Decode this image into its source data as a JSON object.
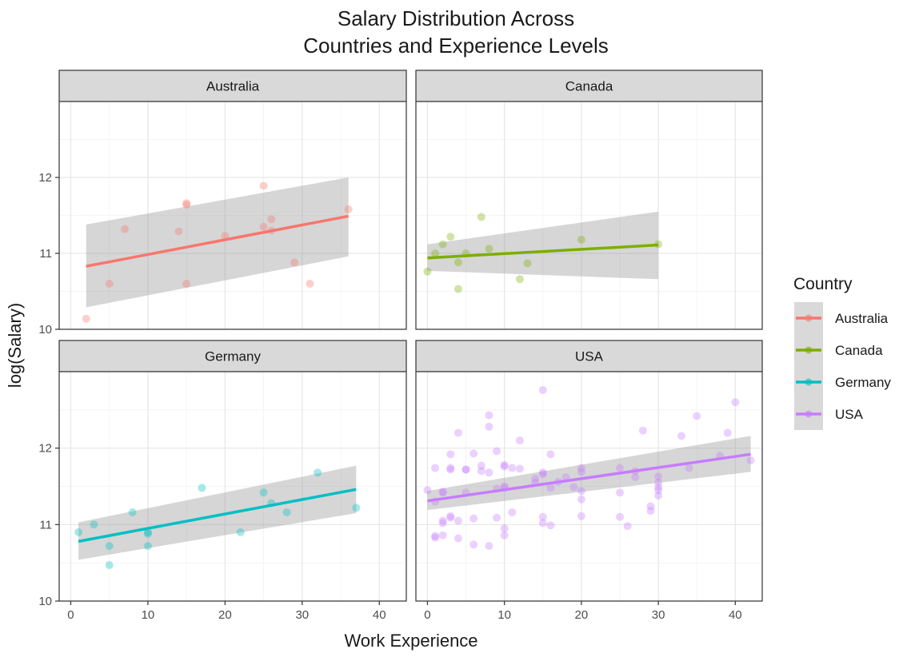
{
  "chart_data": {
    "type": "scatter",
    "title": "Salary Distribution Across\nCountries and Experience Levels",
    "xlabel": "Work Experience",
    "ylabel": "log(Salary)",
    "xlim": [
      -1.5,
      43.5
    ],
    "ylim": [
      10,
      13
    ],
    "x_ticks": [
      0,
      10,
      20,
      30,
      40
    ],
    "y_ticks": [
      10,
      11,
      12
    ],
    "grid": true,
    "legend": {
      "title": "Country",
      "placement": "right",
      "entries": [
        "Australia",
        "Canada",
        "Germany",
        "USA"
      ]
    },
    "panels": [
      {
        "name": "Australia",
        "color": "#F8766D",
        "fit": {
          "x": [
            2,
            36
          ],
          "y": [
            10.83,
            11.49
          ],
          "lower": [
            10.29,
            10.96
          ],
          "upper": [
            11.38,
            12.0
          ]
        },
        "points": [
          [
            2,
            10.14
          ],
          [
            5,
            10.6
          ],
          [
            7,
            11.32
          ],
          [
            14,
            11.29
          ],
          [
            15,
            11.66
          ],
          [
            15,
            11.64
          ],
          [
            15,
            10.6
          ],
          [
            20,
            11.23
          ],
          [
            25,
            11.89
          ],
          [
            25,
            11.35
          ],
          [
            26,
            11.45
          ],
          [
            26,
            11.3
          ],
          [
            29,
            10.88
          ],
          [
            31,
            10.6
          ],
          [
            36,
            11.58
          ]
        ]
      },
      {
        "name": "Canada",
        "color": "#7CAE00",
        "fit": {
          "x": [
            0,
            30
          ],
          "y": [
            10.94,
            11.11
          ],
          "lower": [
            10.77,
            10.66
          ],
          "upper": [
            11.12,
            11.55
          ]
        },
        "points": [
          [
            0,
            10.76
          ],
          [
            1,
            11.0
          ],
          [
            2,
            11.12
          ],
          [
            3,
            11.22
          ],
          [
            4,
            10.88
          ],
          [
            4,
            10.53
          ],
          [
            5,
            11.0
          ],
          [
            7,
            11.48
          ],
          [
            8,
            11.06
          ],
          [
            12,
            10.66
          ],
          [
            13,
            10.87
          ],
          [
            20,
            11.18
          ],
          [
            30,
            11.12
          ]
        ]
      },
      {
        "name": "Germany",
        "color": "#00BFC4",
        "fit": {
          "x": [
            1,
            37
          ],
          "y": [
            10.78,
            11.46
          ],
          "lower": [
            10.54,
            11.15
          ],
          "upper": [
            11.03,
            11.77
          ]
        },
        "points": [
          [
            1,
            10.9
          ],
          [
            3,
            11.0
          ],
          [
            5,
            10.72
          ],
          [
            5,
            10.47
          ],
          [
            8,
            11.16
          ],
          [
            10,
            10.9
          ],
          [
            10,
            10.88
          ],
          [
            10,
            10.72
          ],
          [
            17,
            11.48
          ],
          [
            22,
            10.9
          ],
          [
            25,
            11.42
          ],
          [
            26,
            11.28
          ],
          [
            28,
            11.16
          ],
          [
            32,
            11.68
          ],
          [
            37,
            11.22
          ]
        ]
      },
      {
        "name": "USA",
        "color": "#C77CFF",
        "fit": {
          "x": [
            0,
            42
          ],
          "y": [
            11.31,
            11.92
          ],
          "lower": [
            11.19,
            11.69
          ],
          "upper": [
            11.44,
            12.16
          ]
        },
        "points": [
          [
            0,
            11.45
          ],
          [
            1,
            11.3
          ],
          [
            1,
            11.74
          ],
          [
            1,
            10.85
          ],
          [
            1,
            10.83
          ],
          [
            2,
            11.43
          ],
          [
            2,
            11.42
          ],
          [
            2,
            11.05
          ],
          [
            2,
            11.02
          ],
          [
            2,
            10.86
          ],
          [
            3,
            11.92
          ],
          [
            3,
            11.74
          ],
          [
            3,
            11.11
          ],
          [
            3,
            11.09
          ],
          [
            3,
            11.72
          ],
          [
            4,
            12.2
          ],
          [
            4,
            11.05
          ],
          [
            4,
            10.82
          ],
          [
            5,
            11.72
          ],
          [
            5,
            11.72
          ],
          [
            5,
            11.42
          ],
          [
            6,
            11.93
          ],
          [
            6,
            11.08
          ],
          [
            6,
            10.74
          ],
          [
            7,
            11.77
          ],
          [
            7,
            11.7
          ],
          [
            8,
            12.43
          ],
          [
            8,
            12.28
          ],
          [
            8,
            11.68
          ],
          [
            8,
            10.72
          ],
          [
            9,
            11.96
          ],
          [
            9,
            11.47
          ],
          [
            9,
            11.09
          ],
          [
            10,
            11.78
          ],
          [
            10,
            11.76
          ],
          [
            10,
            11.5
          ],
          [
            10,
            11.48
          ],
          [
            10,
            10.95
          ],
          [
            10,
            10.86
          ],
          [
            11,
            11.74
          ],
          [
            11,
            11.16
          ],
          [
            12,
            12.1
          ],
          [
            12,
            11.73
          ],
          [
            14,
            11.6
          ],
          [
            14,
            11.55
          ],
          [
            15,
            12.76
          ],
          [
            15,
            11.68
          ],
          [
            15,
            11.66
          ],
          [
            15,
            11.1
          ],
          [
            15,
            11.02
          ],
          [
            16,
            11.92
          ],
          [
            16,
            11.48
          ],
          [
            16,
            10.99
          ],
          [
            17,
            11.56
          ],
          [
            18,
            11.62
          ],
          [
            19,
            11.49
          ],
          [
            20,
            11.74
          ],
          [
            20,
            11.69
          ],
          [
            20,
            11.33
          ],
          [
            20,
            11.11
          ],
          [
            20,
            11.44
          ],
          [
            25,
            11.74
          ],
          [
            25,
            11.42
          ],
          [
            25,
            11.1
          ],
          [
            26,
            10.98
          ],
          [
            27,
            11.7
          ],
          [
            27,
            11.62
          ],
          [
            28,
            12.23
          ],
          [
            29,
            11.24
          ],
          [
            29,
            11.18
          ],
          [
            30,
            11.63
          ],
          [
            30,
            11.55
          ],
          [
            30,
            11.49
          ],
          [
            30,
            11.45
          ],
          [
            30,
            11.38
          ],
          [
            33,
            12.16
          ],
          [
            34,
            11.74
          ],
          [
            35,
            12.42
          ],
          [
            38,
            11.9
          ],
          [
            39,
            12.2
          ],
          [
            40,
            12.6
          ],
          [
            42,
            11.84
          ]
        ]
      }
    ]
  }
}
